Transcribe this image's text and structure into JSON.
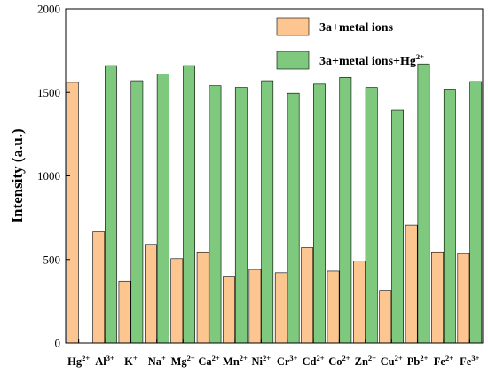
{
  "colors": {
    "series_1": "#FDC690",
    "series_2": "#7FC97F",
    "edge": "#000000"
  },
  "chart_data": {
    "type": "bar",
    "title": "",
    "xlabel": "",
    "ylabel": "Intensity (a.u.)",
    "ylim": [
      0,
      2000
    ],
    "yticks": [
      0,
      500,
      1000,
      1500,
      2000
    ],
    "grid": false,
    "legend_position": "top-right",
    "categories": [
      {
        "base": "Hg",
        "sup": "2+"
      },
      {
        "base": "Al",
        "sup": "3+"
      },
      {
        "base": "K",
        "sup": "+"
      },
      {
        "base": "Na",
        "sup": "+"
      },
      {
        "base": "Mg",
        "sup": "2+"
      },
      {
        "base": "Ca",
        "sup": "2+"
      },
      {
        "base": "Mn",
        "sup": "2+"
      },
      {
        "base": "Ni",
        "sup": "2+"
      },
      {
        "base": "Cr",
        "sup": "3+"
      },
      {
        "base": "Cd",
        "sup": "2+"
      },
      {
        "base": "Co",
        "sup": "2+"
      },
      {
        "base": "Zn",
        "sup": "2+"
      },
      {
        "base": "Cu",
        "sup": "2+"
      },
      {
        "base": "Pb",
        "sup": "2+"
      },
      {
        "base": "Fe",
        "sup": "2+"
      },
      {
        "base": "Fe",
        "sup": "3+"
      }
    ],
    "series": [
      {
        "name": "3a+metal ions",
        "values": [
          1560,
          665,
          370,
          590,
          505,
          545,
          400,
          440,
          420,
          570,
          430,
          490,
          315,
          705,
          545,
          535
        ]
      },
      {
        "name": "3a+metal ions+Hg",
        "name_sup": "2+",
        "values": [
          null,
          1660,
          1570,
          1610,
          1660,
          1540,
          1530,
          1570,
          1495,
          1550,
          1590,
          1530,
          1395,
          1670,
          1520,
          1565
        ]
      }
    ]
  }
}
